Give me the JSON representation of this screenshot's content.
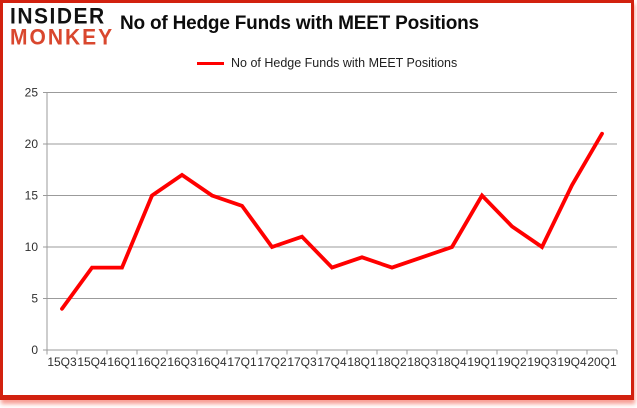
{
  "brand": {
    "line1": "INSIDER",
    "line2": "MONKEY"
  },
  "header": {
    "title": "No of Hedge Funds with MEET Positions"
  },
  "legend": {
    "label": "No of Hedge Funds with MEET Positions"
  },
  "colors": {
    "line": "#ff0000",
    "frame_border": "#d2210f",
    "brand_red": "#d9472e",
    "gridline": "#9b9b9b",
    "axis_text": "#2f2f2f"
  },
  "chart_data": {
    "type": "line",
    "title": "No of Hedge Funds with MEET Positions",
    "categories": [
      "15Q3",
      "15Q4",
      "16Q1",
      "16Q2",
      "16Q3",
      "16Q4",
      "17Q1",
      "17Q2",
      "17Q3",
      "17Q4",
      "18Q1",
      "18Q2",
      "18Q3",
      "18Q4",
      "19Q1",
      "19Q2",
      "19Q3",
      "19Q4",
      "20Q1"
    ],
    "series": [
      {
        "name": "No of Hedge Funds with MEET Positions",
        "values": [
          4,
          8,
          8,
          15,
          17,
          15,
          14,
          10,
          11,
          8,
          9,
          8,
          9,
          10,
          15,
          12,
          10,
          16,
          21
        ]
      }
    ],
    "xlabel": "",
    "ylabel": "",
    "ylim": [
      0,
      25
    ],
    "yticks": [
      0,
      5,
      10,
      15,
      20,
      25
    ],
    "grid": true,
    "legend_position": "top",
    "line_color": "#ff0000"
  }
}
